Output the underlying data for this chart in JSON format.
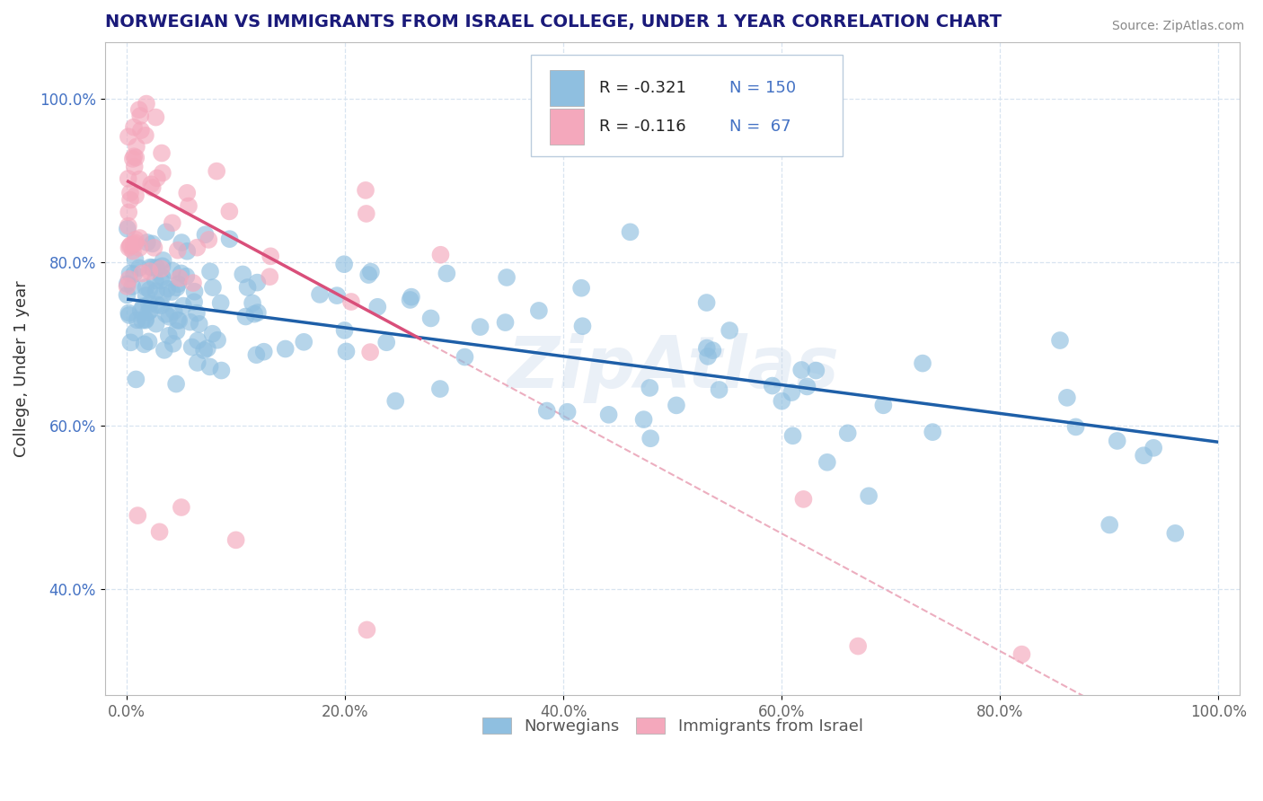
{
  "title": "NORWEGIAN VS IMMIGRANTS FROM ISRAEL COLLEGE, UNDER 1 YEAR CORRELATION CHART",
  "source": "Source: ZipAtlas.com",
  "ylabel": "College, Under 1 year",
  "xticklabels": [
    "0.0%",
    "20.0%",
    "40.0%",
    "60.0%",
    "80.0%",
    "100.0%"
  ],
  "yticklabels": [
    "40.0%",
    "60.0%",
    "80.0%",
    "100.0%"
  ],
  "xlim": [
    -0.02,
    1.02
  ],
  "ylim": [
    0.27,
    1.07
  ],
  "legend_labels": [
    "Norwegians",
    "Immigrants from Israel"
  ],
  "R_blue": -0.321,
  "N_blue": 150,
  "R_pink": -0.116,
  "N_pink": 67,
  "blue_color": "#8fbfe0",
  "pink_color": "#f4a8bc",
  "blue_line_color": "#1e5fa8",
  "pink_line_color": "#d94f7a",
  "pink_dash_color": "#e89ab0",
  "title_color": "#1a1a7a",
  "grid_color": "#d8e4f0",
  "background_color": "#ffffff",
  "watermark": "ZipAtlas",
  "watermark_color": "#ccdaeb",
  "blue_intercept": 0.755,
  "blue_slope": -0.175,
  "pink_intercept": 0.9,
  "pink_slope": -0.72,
  "pink_dash_intercept": 0.9,
  "pink_dash_slope": -0.72,
  "ytick_positions": [
    0.4,
    0.6,
    0.8,
    1.0
  ],
  "xtick_positions": [
    0.0,
    0.2,
    0.4,
    0.6,
    0.8,
    1.0
  ]
}
